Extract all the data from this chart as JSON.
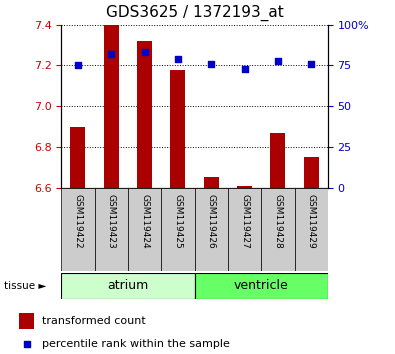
{
  "title": "GDS3625 / 1372193_at",
  "samples": [
    "GSM119422",
    "GSM119423",
    "GSM119424",
    "GSM119425",
    "GSM119426",
    "GSM119427",
    "GSM119428",
    "GSM119429"
  ],
  "transformed_counts": [
    6.9,
    7.4,
    7.32,
    7.18,
    6.65,
    6.61,
    6.87,
    6.75
  ],
  "percentile_ranks": [
    75,
    82,
    83,
    79,
    76,
    73,
    78,
    76
  ],
  "tissue_groups": [
    {
      "name": "atrium",
      "samples": [
        0,
        1,
        2,
        3
      ],
      "color": "#ccffcc"
    },
    {
      "name": "ventricle",
      "samples": [
        4,
        5,
        6,
        7
      ],
      "color": "#66ff66"
    }
  ],
  "ylim_left": [
    6.6,
    7.4
  ],
  "ylim_right": [
    0,
    100
  ],
  "yticks_left": [
    6.6,
    6.8,
    7.0,
    7.2,
    7.4
  ],
  "yticks_right": [
    0,
    25,
    50,
    75,
    100
  ],
  "bar_color": "#aa0000",
  "dot_color": "#0000cc",
  "bar_bottom": 6.6,
  "label_gray": "#cccccc",
  "tick_label_color_left": "#cc0000",
  "tick_label_color_right": "#0000cc",
  "title_fontsize": 11,
  "axis_fontsize": 8,
  "sample_fontsize": 6.5,
  "tissue_fontsize": 9,
  "legend_fontsize": 8
}
